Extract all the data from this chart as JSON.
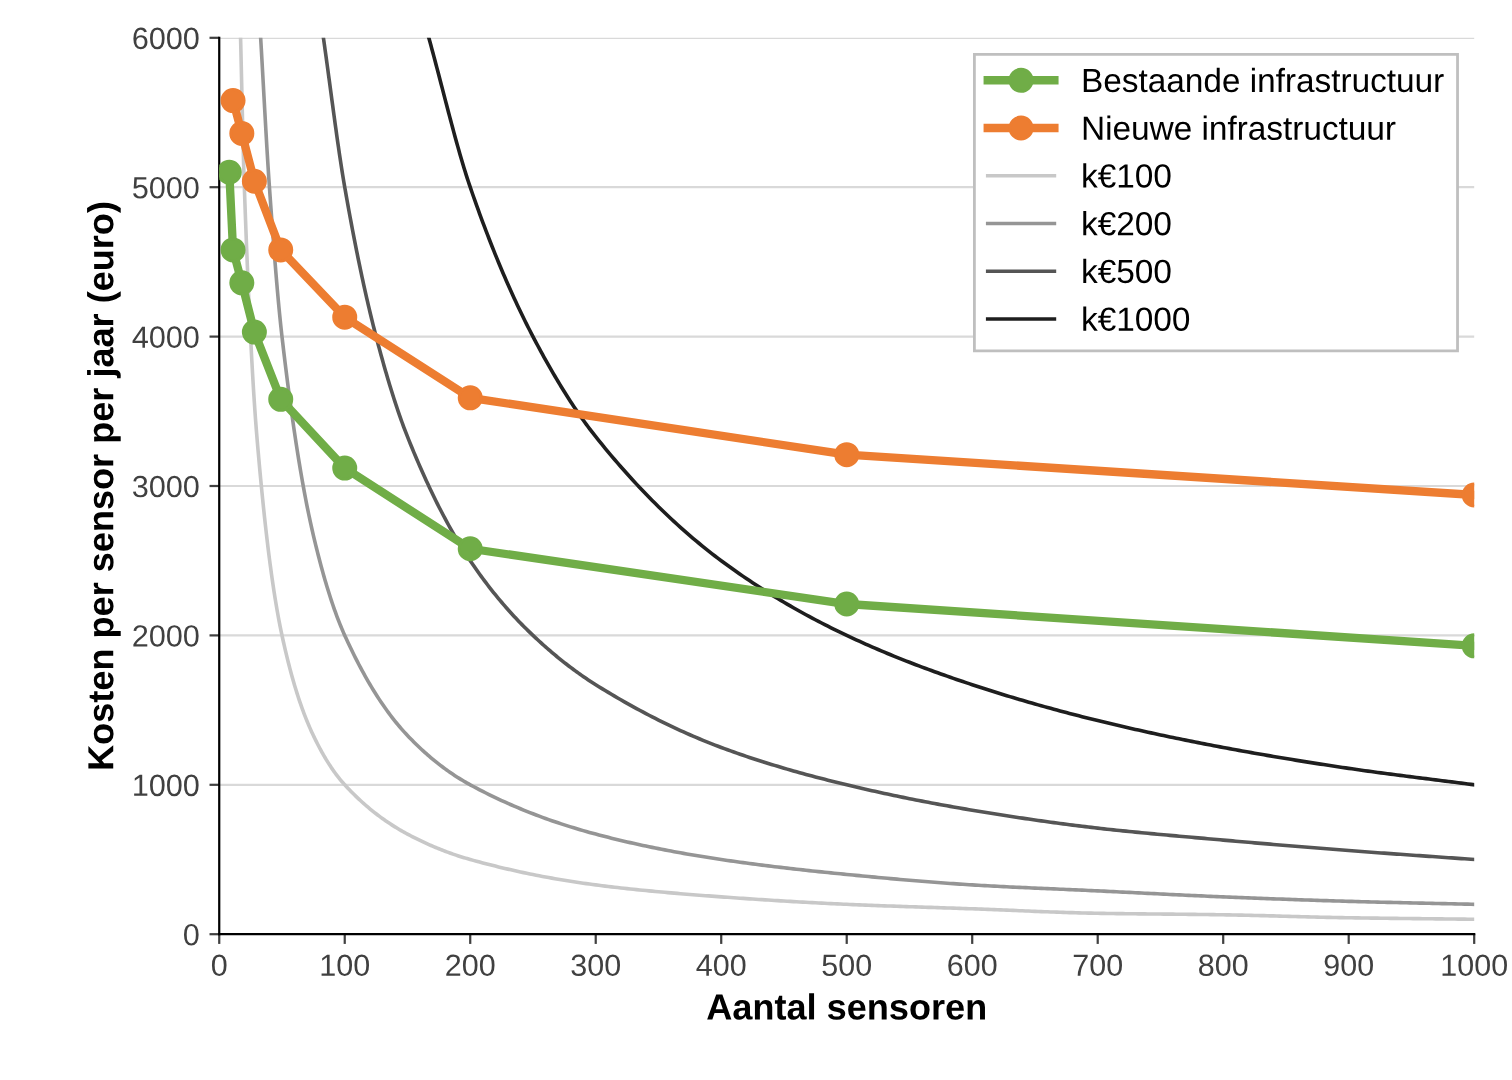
{
  "chart_data": {
    "type": "line",
    "xlabel": "Aantal sensoren",
    "ylabel": "Kosten per sensor per jaar (euro)",
    "xlim": [
      0,
      1000
    ],
    "ylim": [
      0,
      6000
    ],
    "xticks": [
      0,
      100,
      200,
      300,
      400,
      500,
      600,
      700,
      800,
      900,
      1000
    ],
    "yticks": [
      0,
      1000,
      2000,
      3000,
      4000,
      5000,
      6000
    ],
    "grid": "y",
    "legend": "top right",
    "line_style": "solid",
    "series": [
      {
        "name": "Bestaande infrastructuur",
        "color": "#70ad47",
        "marker": "circle",
        "x": [
          8,
          11,
          18,
          28,
          49,
          100,
          200,
          500,
          1000
        ],
        "values": [
          5100,
          4580,
          4360,
          4030,
          3580,
          3120,
          2580,
          2210,
          1930
        ]
      },
      {
        "name": "Nieuwe infrastructuur",
        "color": "#ed7d31",
        "marker": "circle",
        "x": [
          11,
          18,
          28,
          49,
          100,
          200,
          500,
          1000
        ],
        "values": [
          5580,
          5360,
          5040,
          4580,
          4130,
          3590,
          3210,
          2940
        ]
      },
      {
        "name": "k€100",
        "color": "#c8c8c8",
        "marker": "none",
        "x": [
          17,
          20,
          30,
          50,
          75,
          100,
          150,
          200,
          300,
          400,
          500,
          600,
          700,
          800,
          900,
          1000
        ],
        "values": [
          6000,
          5000,
          3330,
          2000,
          1330,
          1000,
          670,
          500,
          330,
          250,
          200,
          170,
          140,
          130,
          110,
          100
        ]
      },
      {
        "name": "k€200",
        "color": "#959595",
        "marker": "none",
        "x": [
          33,
          40,
          50,
          75,
          100,
          150,
          200,
          300,
          400,
          500,
          600,
          700,
          800,
          900,
          1000
        ],
        "values": [
          6000,
          5000,
          4000,
          2670,
          2000,
          1330,
          1000,
          670,
          500,
          400,
          330,
          290,
          250,
          220,
          200
        ]
      },
      {
        "name": "k€500",
        "color": "#555555",
        "marker": "none",
        "x": [
          83,
          100,
          125,
          150,
          200,
          250,
          300,
          400,
          500,
          600,
          700,
          800,
          900,
          1000
        ],
        "values": [
          6000,
          5000,
          4000,
          3330,
          2500,
          2000,
          1670,
          1250,
          1000,
          830,
          710,
          630,
          560,
          500
        ]
      },
      {
        "name": "k€1000",
        "color": "#1e1e1e",
        "marker": "none",
        "x": [
          167,
          200,
          250,
          300,
          400,
          500,
          600,
          700,
          800,
          900,
          1000
        ],
        "values": [
          6000,
          5000,
          4000,
          3330,
          2500,
          2000,
          1670,
          1430,
          1250,
          1110,
          1000
        ]
      }
    ]
  }
}
